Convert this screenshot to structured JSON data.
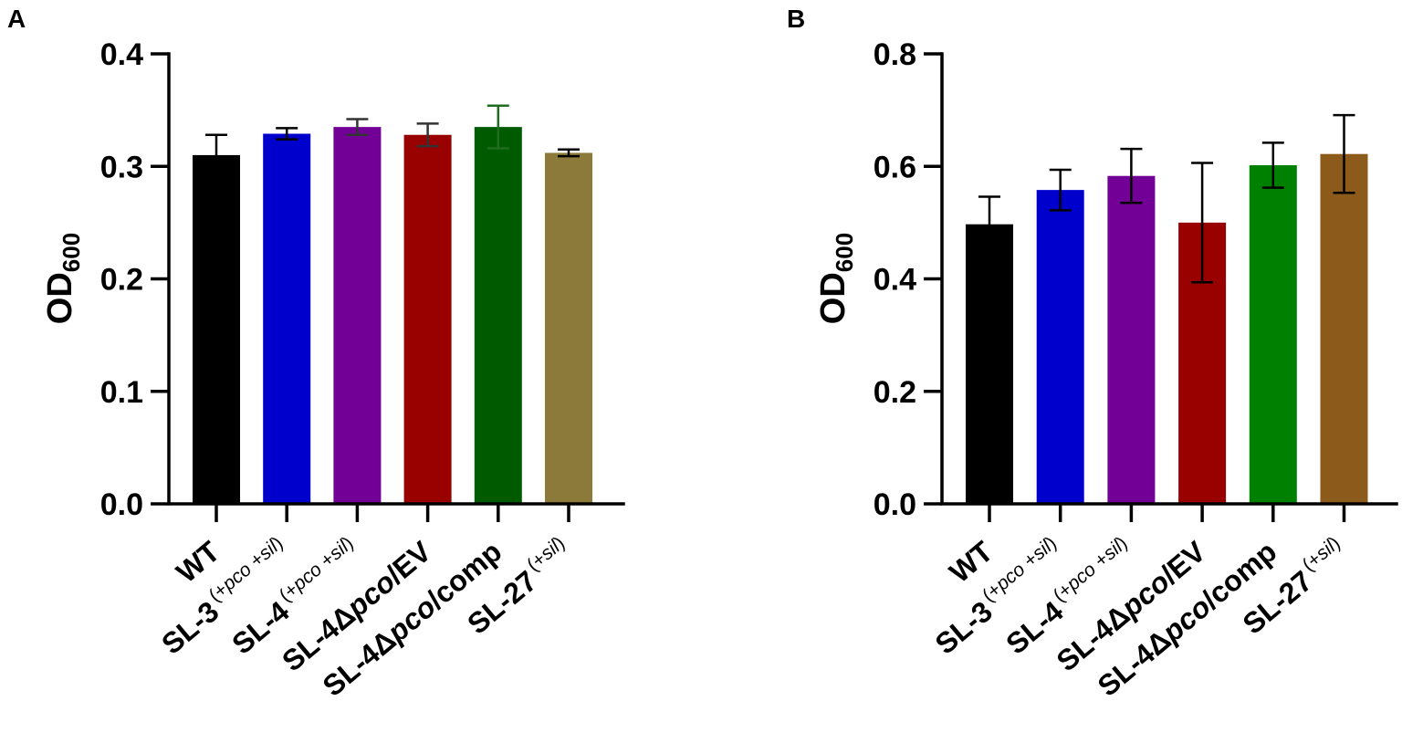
{
  "chart_data": [
    {
      "panel": "A",
      "type": "bar",
      "ylabel": "OD",
      "ylabel_subscript": "600",
      "ylim": [
        0,
        0.4
      ],
      "yticks": [
        "0.0",
        "0.1",
        "0.2",
        "0.3",
        "0.4"
      ],
      "categories": [
        {
          "base": "WT",
          "italic": "",
          "tail": "",
          "sup_pre": "",
          "sup_it1": "",
          "sup_mid": "",
          "sup_it2": "",
          "sup_post": ""
        },
        {
          "base": "SL-3",
          "italic": "",
          "tail": "",
          "sup_pre": "(+",
          "sup_it1": "pco",
          "sup_mid": " +",
          "sup_it2": "sil",
          "sup_post": ")"
        },
        {
          "base": "SL-4",
          "italic": "",
          "tail": "",
          "sup_pre": "(+",
          "sup_it1": "pco",
          "sup_mid": " +",
          "sup_it2": "sil",
          "sup_post": ")"
        },
        {
          "base": "SL-4Δ",
          "italic": "pco",
          "tail": "/EV",
          "sup_pre": "",
          "sup_it1": "",
          "sup_mid": "",
          "sup_it2": "",
          "sup_post": ""
        },
        {
          "base": "SL-4Δ",
          "italic": "pco",
          "tail": "/comp",
          "sup_pre": "",
          "sup_it1": "",
          "sup_mid": "",
          "sup_it2": "",
          "sup_post": ""
        },
        {
          "base": "SL-27",
          "italic": "",
          "tail": "",
          "sup_pre": "(+",
          "sup_it1": "",
          "sup_mid": "",
          "sup_it2": "sil",
          "sup_post": ")"
        }
      ],
      "values": [
        0.31,
        0.329,
        0.335,
        0.328,
        0.335,
        0.312
      ],
      "errors": [
        0.018,
        0.005,
        0.007,
        0.01,
        0.019,
        0.003
      ],
      "colors": [
        "#000000",
        "#0000cc",
        "#720096",
        "#990000",
        "#005a00",
        "#8c7a3a"
      ],
      "error_colors": [
        "#000000",
        "#000000",
        "#333333",
        "#333333",
        "#1f6e1f",
        "#000000"
      ]
    },
    {
      "panel": "B",
      "type": "bar",
      "ylabel": "OD",
      "ylabel_subscript": "600",
      "ylim": [
        0,
        0.8
      ],
      "yticks": [
        "0.0",
        "0.2",
        "0.4",
        "0.6",
        "0.8"
      ],
      "categories": [
        {
          "base": "WT",
          "italic": "",
          "tail": "",
          "sup_pre": "",
          "sup_it1": "",
          "sup_mid": "",
          "sup_it2": "",
          "sup_post": ""
        },
        {
          "base": "SL-3",
          "italic": "",
          "tail": "",
          "sup_pre": "(+",
          "sup_it1": "pco",
          "sup_mid": " +",
          "sup_it2": "sil",
          "sup_post": ")"
        },
        {
          "base": "SL-4",
          "italic": "",
          "tail": "",
          "sup_pre": "(+",
          "sup_it1": "pco",
          "sup_mid": " +",
          "sup_it2": "sil",
          "sup_post": ")"
        },
        {
          "base": "SL-4Δ",
          "italic": "pco",
          "tail": "/EV",
          "sup_pre": "",
          "sup_it1": "",
          "sup_mid": "",
          "sup_it2": "",
          "sup_post": ""
        },
        {
          "base": "SL-4Δ",
          "italic": "pco",
          "tail": "/comp",
          "sup_pre": "",
          "sup_it1": "",
          "sup_mid": "",
          "sup_it2": "",
          "sup_post": ""
        },
        {
          "base": "SL-27",
          "italic": "",
          "tail": "",
          "sup_pre": "(+",
          "sup_it1": "",
          "sup_mid": "",
          "sup_it2": "sil",
          "sup_post": ")"
        }
      ],
      "values": [
        0.497,
        0.558,
        0.583,
        0.5,
        0.602,
        0.622
      ],
      "errors": [
        0.049,
        0.036,
        0.048,
        0.106,
        0.04,
        0.069
      ],
      "colors": [
        "#000000",
        "#0000cc",
        "#720096",
        "#990000",
        "#008000",
        "#8c5a1a"
      ],
      "error_colors": [
        "#000000",
        "#000000",
        "#000000",
        "#000000",
        "#000000",
        "#000000"
      ]
    }
  ]
}
